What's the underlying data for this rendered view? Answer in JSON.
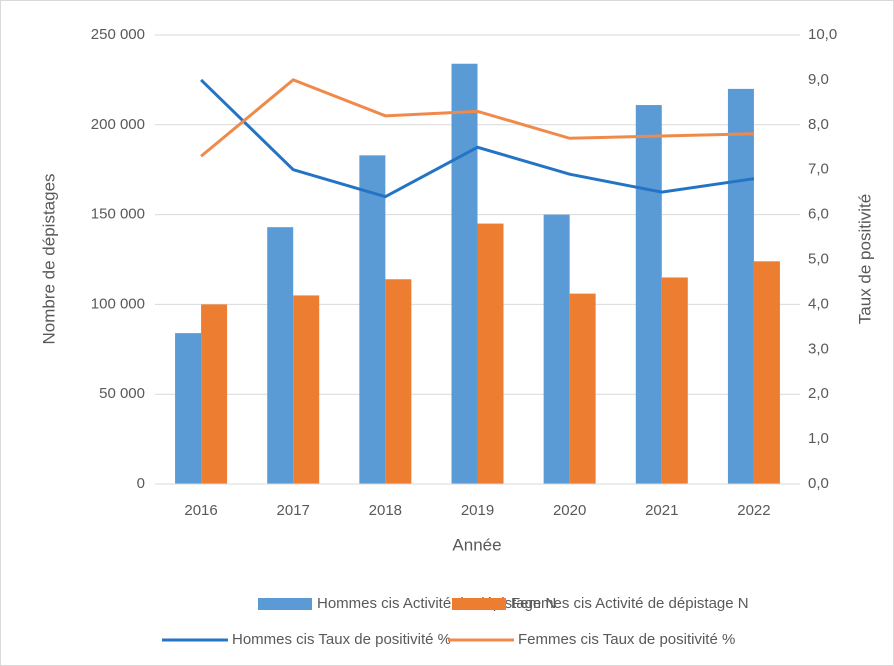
{
  "chart_data": {
    "type": "bar_line",
    "categories": [
      "2016",
      "2017",
      "2018",
      "2019",
      "2020",
      "2021",
      "2022"
    ],
    "x_label": "Année",
    "y_label": "Nombre de dépistages",
    "y2_label": "Taux de positivité",
    "series": [
      {
        "name": "Hommes cis Activité de dépistage N",
        "type": "bar",
        "color": "#5b9bd5",
        "values": [
          84000,
          143000,
          183000,
          234000,
          150000,
          211000,
          220000
        ]
      },
      {
        "name": "Femmes cis Activité de dépistage N",
        "type": "bar",
        "color": "#ed7d31",
        "values": [
          100000,
          105000,
          114000,
          145000,
          106000,
          115000,
          124000
        ]
      },
      {
        "name": "Hommes cis Taux de positivité %",
        "type": "line",
        "axis": "y2",
        "color": "#2474c6",
        "values": [
          9.0,
          7.0,
          6.4,
          7.5,
          6.9,
          6.5,
          6.8
        ]
      },
      {
        "name": "Femmes cis Taux de positivité %",
        "type": "line",
        "axis": "y2",
        "color": "#f08a4b",
        "values": [
          7.3,
          9.0,
          8.2,
          8.3,
          7.7,
          7.75,
          7.8
        ]
      }
    ],
    "ylim": [
      0,
      250000
    ],
    "yticks": [
      0,
      {
        "value": 50000,
        "label": "50 000"
      },
      {
        "value": 100000,
        "label": "100 000"
      },
      {
        "value": 150000,
        "label": "150 000"
      },
      {
        "value": 200000,
        "label": "200 000"
      },
      {
        "value": 250000,
        "label": "250 000"
      }
    ],
    "y2lim": [
      0,
      10
    ],
    "y2ticks": [
      {
        "value": 0,
        "label": "0,0"
      },
      {
        "value": 1,
        "label": "1,0"
      },
      {
        "value": 2,
        "label": "2,0"
      },
      {
        "value": 3,
        "label": "3,0"
      },
      {
        "value": 4,
        "label": "4,0"
      },
      {
        "value": 5,
        "label": "5,0"
      },
      {
        "value": 6,
        "label": "6,0"
      },
      {
        "value": 7,
        "label": "7,0"
      },
      {
        "value": 8,
        "label": "8,0"
      },
      {
        "value": 9,
        "label": "9,0"
      },
      {
        "value": 10,
        "label": "10,0"
      }
    ],
    "grid": true,
    "legend": "bottom"
  }
}
